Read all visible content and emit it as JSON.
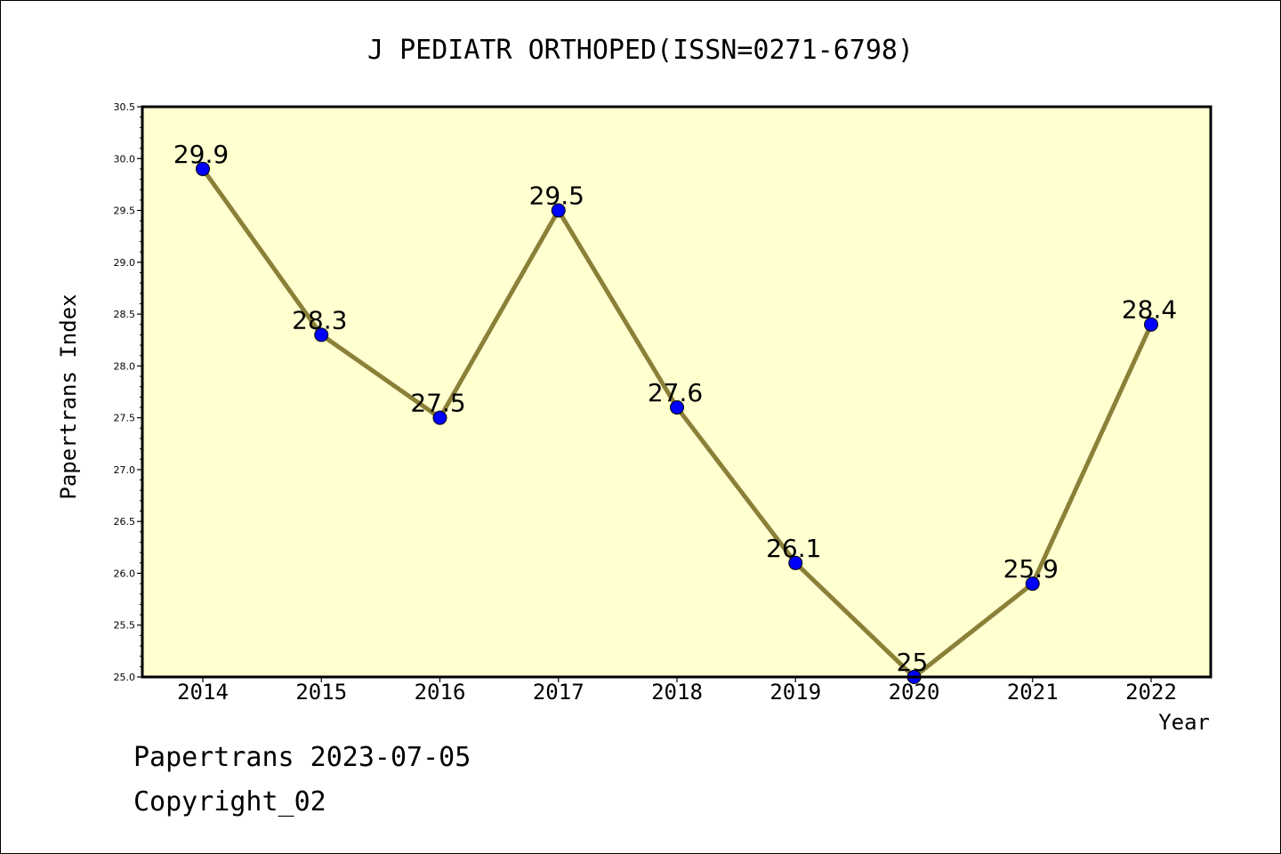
{
  "chart_data": {
    "type": "line",
    "title": "J PEDIATR ORTHOPED(ISSN=0271-6798)",
    "xlabel": "Year",
    "ylabel": "Papertrans Index",
    "categories": [
      "2014",
      "2015",
      "2016",
      "2017",
      "2018",
      "2019",
      "2020",
      "2021",
      "2022"
    ],
    "values": [
      29.9,
      28.3,
      27.5,
      29.5,
      27.6,
      26.1,
      25.0,
      25.9,
      28.4
    ],
    "data_labels": [
      "29.9",
      "28.3",
      "27.5",
      "29.5",
      "27.6",
      "26.1",
      "25",
      "25.9",
      "28.4"
    ],
    "ylim": [
      25.0,
      30.5
    ],
    "yticks": [
      "25.0",
      "25.5",
      "26.0",
      "26.5",
      "27.0",
      "27.5",
      "28.0",
      "28.5",
      "29.0",
      "29.5",
      "30.0",
      "30.5"
    ],
    "grid": false,
    "legend": "none",
    "colors": {
      "plot_background": "#FFFFD0",
      "line": "#8B8038",
      "marker": "#0000FF"
    }
  },
  "footer": {
    "line1": "Papertrans 2023-07-05",
    "line2": "Copyright_02"
  }
}
